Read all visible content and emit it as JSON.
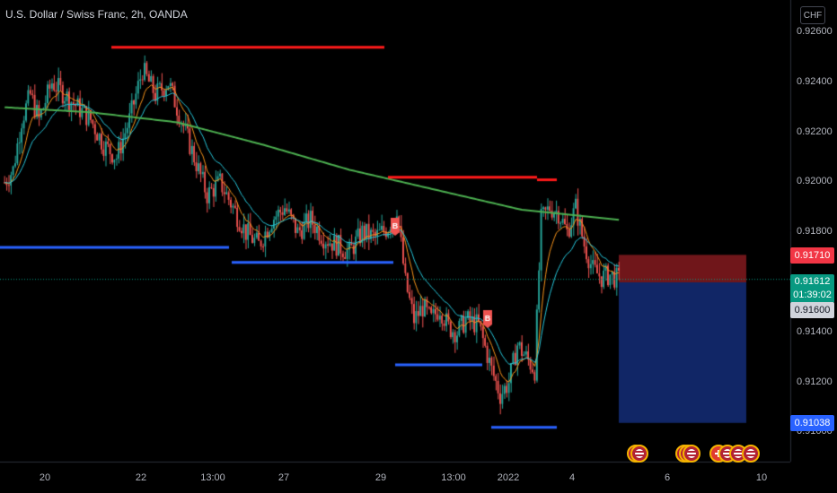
{
  "header": {
    "title": "U.S. Dollar / Swiss Franc, 2h, OANDA",
    "currency": "CHF"
  },
  "colors": {
    "up": "#26a69a",
    "down": "#ef5350",
    "ema_long": "#4caf50",
    "ema_fast": "#f7931a",
    "ema_mid": "#26c6da",
    "resistance": "#ff1a1a",
    "support": "#2962ff",
    "stop_zone": "#7f1d1d",
    "target_zone": "#0d2a6e",
    "marker": "#ef5350"
  },
  "y_axis": {
    "ticks": [
      "0.92600",
      "0.92400",
      "0.92200",
      "0.92000",
      "0.91800",
      "0.91600",
      "0.91400",
      "0.91200",
      "0.91000"
    ]
  },
  "x_axis": {
    "ticks": [
      "20",
      "22",
      "13:00",
      "27",
      "29",
      "13:00",
      "2022",
      "4",
      "6",
      "10"
    ]
  },
  "price_labels": {
    "stop": "0.91710",
    "current_price": "0.91612",
    "countdown": "01:39:02",
    "entry": "0.91600",
    "target": "0.91038"
  },
  "markers": [
    "B",
    "B"
  ],
  "events": {
    "icons": [
      "us-flag-icon",
      "us-flag-icon",
      "us-flag-icon",
      "us-flag-icon",
      "us-flag-icon",
      "swiss-flag-icon",
      "us-flag-icon",
      "us-flag-icon",
      "us-flag-icon"
    ]
  },
  "chart_data": {
    "type": "candlestick",
    "title": "U.S. Dollar / Swiss Franc, 2h, OANDA",
    "ylim": [
      0.91,
      0.9262
    ],
    "x_ticks": [
      "20",
      "22",
      "13:00",
      "27",
      "29",
      "13:00",
      "2022",
      "4",
      "6",
      "10"
    ],
    "last_price": 0.91612,
    "resistance_levels": [
      0.9254,
      0.9202,
      0.9201
    ],
    "support_levels": [
      0.9174,
      0.9168,
      0.9169,
      0.9127,
      0.9102
    ],
    "position": {
      "side": "short",
      "entry": 0.916,
      "stop": 0.9171,
      "target": 0.91038
    },
    "anchors": [
      [
        0,
        0.92
      ],
      [
        4,
        0.9205
      ],
      [
        8,
        0.9225
      ],
      [
        12,
        0.9235
      ],
      [
        16,
        0.9225
      ],
      [
        22,
        0.924
      ],
      [
        28,
        0.9235
      ],
      [
        34,
        0.923
      ],
      [
        40,
        0.9225
      ],
      [
        46,
        0.9215
      ],
      [
        52,
        0.921
      ],
      [
        58,
        0.9225
      ],
      [
        64,
        0.9245
      ],
      [
        70,
        0.9235
      ],
      [
        76,
        0.924
      ],
      [
        82,
        0.9225
      ],
      [
        88,
        0.921
      ],
      [
        94,
        0.9195
      ],
      [
        100,
        0.92
      ],
      [
        106,
        0.919
      ],
      [
        112,
        0.918
      ],
      [
        118,
        0.9175
      ],
      [
        124,
        0.9185
      ],
      [
        130,
        0.919
      ],
      [
        136,
        0.918
      ],
      [
        142,
        0.9185
      ],
      [
        148,
        0.9178
      ],
      [
        154,
        0.9175
      ],
      [
        160,
        0.9172
      ],
      [
        166,
        0.918
      ],
      [
        172,
        0.9178
      ],
      [
        178,
        0.9182
      ],
      [
        182,
        0.919
      ],
      [
        186,
        0.916
      ],
      [
        190,
        0.9145
      ],
      [
        194,
        0.915
      ],
      [
        198,
        0.9145
      ],
      [
        202,
        0.915
      ],
      [
        206,
        0.9142
      ],
      [
        210,
        0.914
      ],
      [
        214,
        0.9145
      ],
      [
        220,
        0.9143
      ],
      [
        226,
        0.9125
      ],
      [
        230,
        0.9115
      ],
      [
        234,
        0.912
      ],
      [
        238,
        0.9135
      ],
      [
        242,
        0.913
      ],
      [
        246,
        0.9125
      ],
      [
        249,
        0.9185
      ],
      [
        253,
        0.919
      ],
      [
        257,
        0.9188
      ],
      [
        261,
        0.918
      ],
      [
        265,
        0.919
      ],
      [
        269,
        0.9175
      ],
      [
        273,
        0.9165
      ],
      [
        277,
        0.9162
      ],
      [
        281,
        0.9163
      ],
      [
        285,
        0.9161
      ]
    ],
    "ema_slow": [
      [
        0,
        0.923
      ],
      [
        40,
        0.9228
      ],
      [
        80,
        0.9224
      ],
      [
        120,
        0.9215
      ],
      [
        160,
        0.9205
      ],
      [
        200,
        0.9197
      ],
      [
        240,
        0.9189
      ],
      [
        285,
        0.9185
      ]
    ],
    "ema_fast": "computed",
    "bar_count": 286
  }
}
